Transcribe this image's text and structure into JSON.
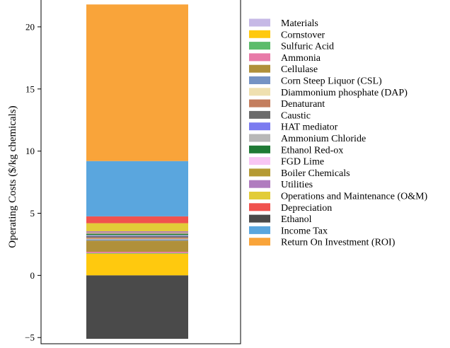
{
  "chart_data": {
    "type": "bar",
    "stacked": true,
    "categories": [
      ""
    ],
    "ylabel": "Operating Costs ($/kg chemicals)",
    "ylim": [
      -5.5,
      22.5
    ],
    "yticks": [
      -5,
      0,
      5,
      10,
      15,
      20
    ],
    "ytick_labels": [
      "−5",
      "0",
      "5",
      "10",
      "15",
      "20"
    ],
    "legend_position": "right",
    "series": [
      {
        "name": "Materials",
        "value": 0.0,
        "color": "#c6b9e6"
      },
      {
        "name": "Cornstover",
        "value": 1.75,
        "color": "#ffc90e"
      },
      {
        "name": "Sulfuric Acid",
        "value": 0.05,
        "color": "#5cbc6b"
      },
      {
        "name": "Ammonia",
        "value": 0.1,
        "color": "#e87aa8"
      },
      {
        "name": "Cellulase",
        "value": 0.9,
        "color": "#b0903a"
      },
      {
        "name": "Corn Steep Liquor (CSL)",
        "value": 0.1,
        "color": "#7593c4"
      },
      {
        "name": " Diammonium phosphate (DAP)",
        "value": 0.05,
        "color": "#efe0b0"
      },
      {
        "name": "Denaturant",
        "value": 0.1,
        "color": "#c47e5e"
      },
      {
        "name": "Caustic",
        "value": 0.1,
        "color": "#6b6b6b"
      },
      {
        "name": "HAT mediator",
        "value": 0.05,
        "color": "#7b7bf0"
      },
      {
        "name": "Ammonium Chloride",
        "value": 0.05,
        "color": "#b8b8b8"
      },
      {
        "name": "Ethanol Red-ox",
        "value": 0.1,
        "color": "#1f7a35"
      },
      {
        "name": "FGD Lime",
        "value": 0.05,
        "color": "#f8c6f4"
      },
      {
        "name": "Boiler Chemicals",
        "value": 0.05,
        "color": "#b59a34"
      },
      {
        "name": "Utilities",
        "value": 0.1,
        "color": "#b07cbf"
      },
      {
        "name": "Operations and Maintenance (O&M)",
        "value": 0.65,
        "color": "#e2cc38"
      },
      {
        "name": "Depreciation",
        "value": 0.55,
        "color": "#f0524e"
      },
      {
        "name": "Ethanol",
        "value": -5.1,
        "color": "#4a4a4a"
      },
      {
        "name": "Income Tax",
        "value": 4.45,
        "color": "#5aa6de"
      },
      {
        "name": "Return On Investment (ROI)",
        "value": 12.6,
        "color": "#f9a43a"
      }
    ]
  }
}
